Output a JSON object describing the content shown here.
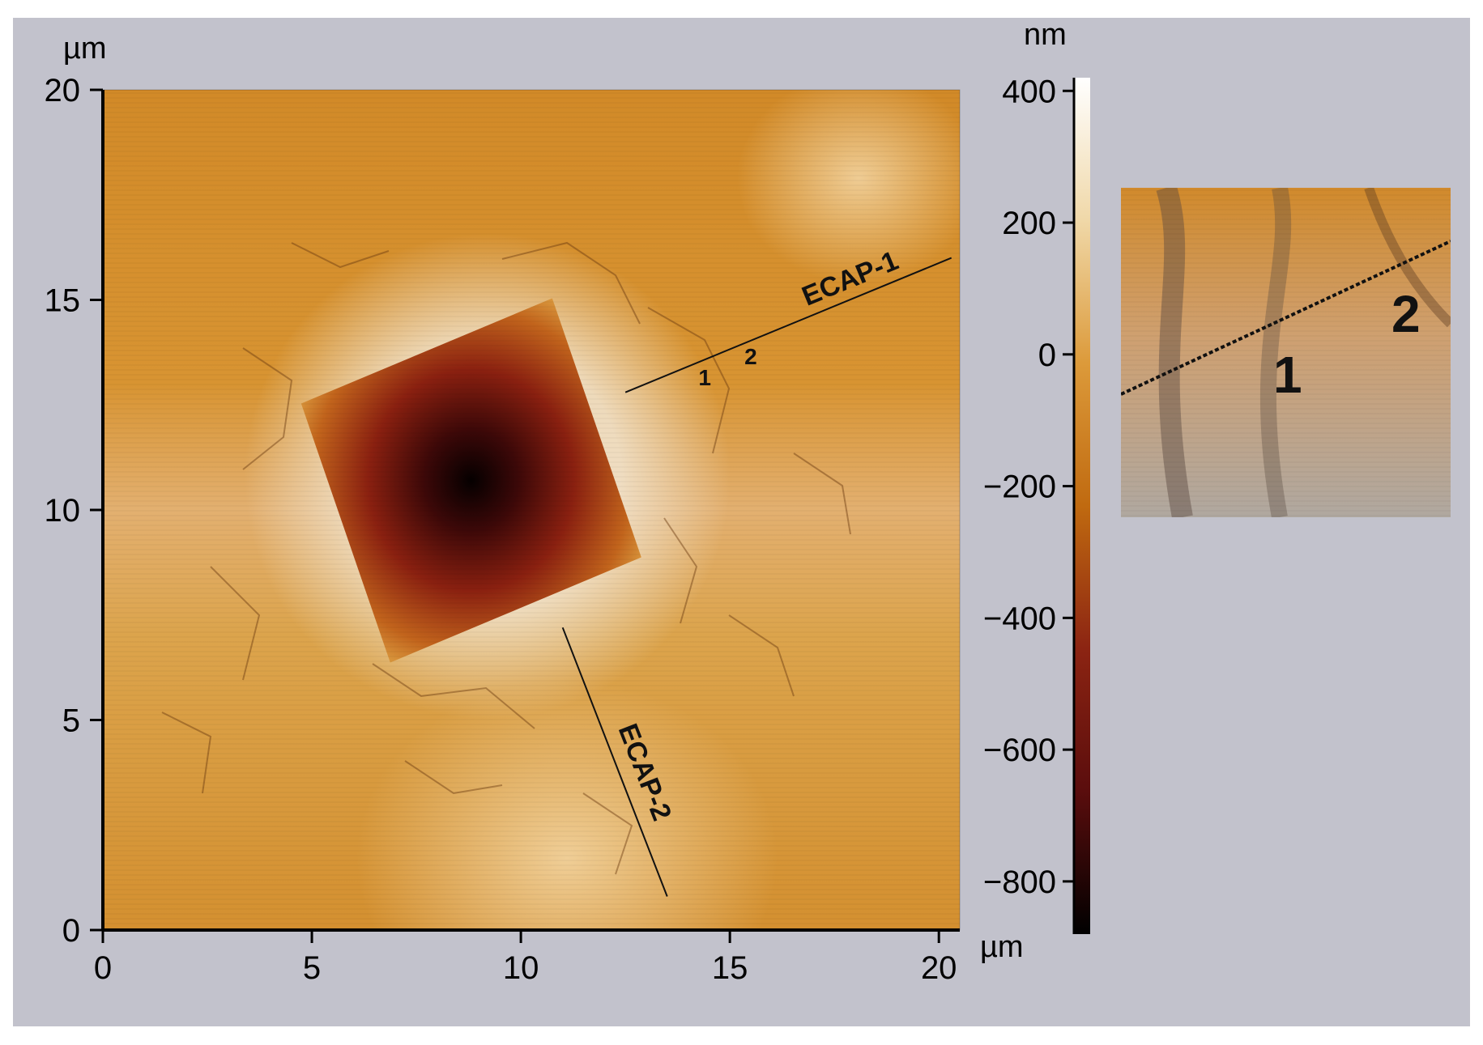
{
  "figure": {
    "background": "#c2c2cc",
    "frame": "#ffffff"
  },
  "map": {
    "x_unit": "µm",
    "y_unit": "µm",
    "x_range": [
      0,
      20.5
    ],
    "y_range": [
      0,
      20
    ],
    "x_ticks": [
      "0",
      "5",
      "10",
      "15",
      "20"
    ],
    "y_ticks": [
      "0",
      "5",
      "10",
      "15",
      "20"
    ],
    "x_tick_values": [
      0,
      5,
      10,
      15,
      20
    ],
    "y_tick_values": [
      0,
      5,
      10,
      15,
      20
    ],
    "indent_center_um": [
      9.2,
      10.8
    ],
    "profiles": [
      {
        "label": "ECAP-1",
        "from_um": [
          12.5,
          12.8
        ],
        "to_um": [
          20.3,
          16.0
        ]
      },
      {
        "label": "ECAP-2",
        "from_um": [
          11.0,
          7.2
        ],
        "to_um": [
          13.5,
          0.8
        ]
      }
    ],
    "points": [
      {
        "label": "1",
        "at_um": [
          14.4,
          13.2
        ]
      },
      {
        "label": "2",
        "at_um": [
          15.5,
          13.7
        ]
      }
    ]
  },
  "colorbar": {
    "unit": "nm",
    "range": [
      -880,
      420
    ],
    "ticks": [
      "400",
      "200",
      "0",
      "−200",
      "−400",
      "−600",
      "−800"
    ],
    "tick_values": [
      400,
      200,
      0,
      -200,
      -400,
      -600,
      -800
    ],
    "colors": [
      "#000000",
      "#5a0d0d",
      "#8c2412",
      "#c06a10",
      "#dc9a3a",
      "#f0d8a8",
      "#ffffff"
    ]
  },
  "inset": {
    "point_labels": [
      "1",
      "2"
    ]
  }
}
